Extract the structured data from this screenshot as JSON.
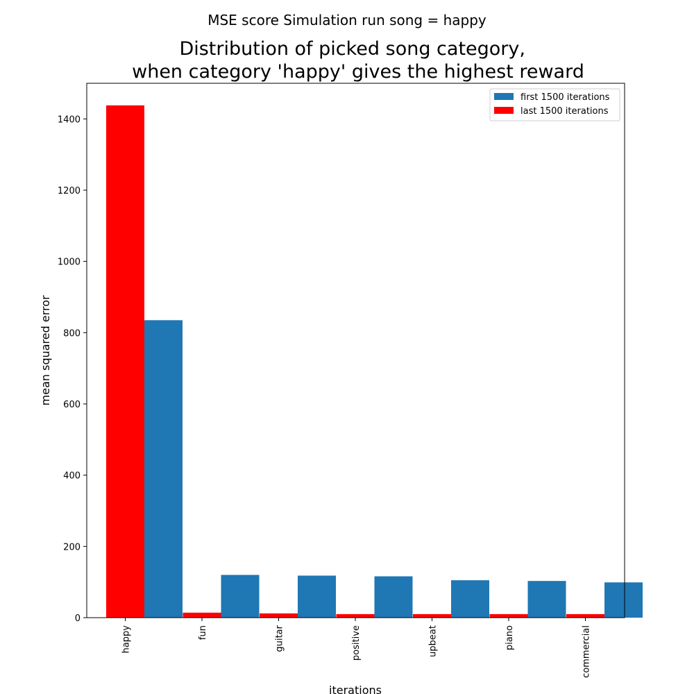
{
  "figure": {
    "suptitle": "MSE score Simulation run song = happy"
  },
  "chart_data": {
    "type": "bar",
    "title": "Distribution of picked song category,\nwhen category 'happy' gives the highest reward",
    "xlabel": "iterations",
    "ylabel": "mean squared error",
    "categories": [
      "happy",
      "fun",
      "guitar",
      "positive",
      "upbeat",
      "piano",
      "commercial"
    ],
    "series": [
      {
        "name": "first 1500 iterations",
        "color": "#1f77b4",
        "values": [
          835,
          120,
          118,
          116,
          105,
          103,
          99
        ]
      },
      {
        "name": "last 1500 iterations",
        "color": "#ff0000",
        "values": [
          1438,
          14,
          12,
          10,
          10,
          10,
          10
        ]
      }
    ],
    "yticks": [
      0,
      200,
      400,
      600,
      800,
      1000,
      1200,
      1400
    ],
    "ylim": [
      0,
      1500
    ],
    "grid": false,
    "legend_position": "top-right"
  }
}
